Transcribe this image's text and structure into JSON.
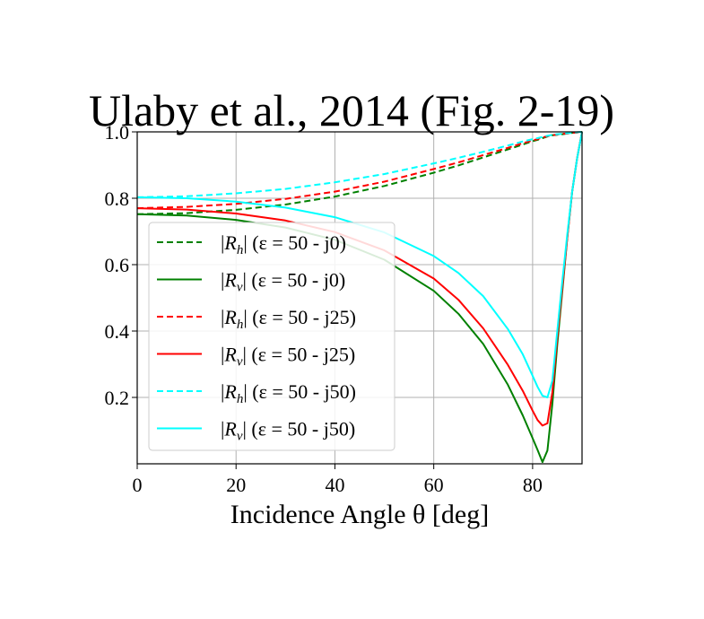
{
  "chart_data": {
    "type": "line",
    "title": "Ulaby et al., 2014 (Fig. 2-19)",
    "xlabel": "Incidence Angle θ [deg]",
    "ylabel": "",
    "xlim": [
      0,
      90
    ],
    "ylim": [
      0,
      1.0
    ],
    "xticks": [
      "0",
      "20",
      "40",
      "60",
      "80"
    ],
    "xtick_values": [
      0,
      20,
      40,
      60,
      80
    ],
    "yticks": [
      "0.2",
      "0.4",
      "0.6",
      "0.8",
      "1.0"
    ],
    "ytick_values": [
      0.2,
      0.4,
      0.6,
      0.8,
      1.0
    ],
    "grid": true,
    "legend_position": "lower-left",
    "x": [
      0,
      10,
      20,
      30,
      40,
      50,
      60,
      65,
      70,
      75,
      78,
      80,
      81,
      82,
      83,
      84,
      85,
      86,
      87,
      88,
      89,
      90
    ],
    "series": [
      {
        "name": "|R_h| (ε = 50 - j0)",
        "color": "#008000",
        "dash": true,
        "values": [
          0.752,
          0.755,
          0.765,
          0.781,
          0.805,
          0.837,
          0.877,
          0.899,
          0.923,
          0.947,
          0.962,
          0.972,
          0.976,
          0.981,
          0.986,
          0.99,
          0.991,
          0.993,
          0.995,
          0.997,
          0.998,
          1.0
        ]
      },
      {
        "name": "|R_v| (ε = 50 - j0)",
        "color": "#008000",
        "dash": false,
        "values": [
          0.752,
          0.748,
          0.735,
          0.712,
          0.675,
          0.615,
          0.521,
          0.452,
          0.361,
          0.238,
          0.146,
          0.077,
          0.042,
          0.005,
          0.04,
          0.18,
          0.36,
          0.52,
          0.68,
          0.82,
          0.92,
          1.0
        ]
      },
      {
        "name": "|R_h| (ε = 50 - j25)",
        "color": "#ff0000",
        "dash": true,
        "values": [
          0.77,
          0.774,
          0.783,
          0.798,
          0.82,
          0.85,
          0.888,
          0.908,
          0.93,
          0.952,
          0.966,
          0.974,
          0.978,
          0.983,
          0.987,
          0.99,
          0.992,
          0.994,
          0.995,
          0.997,
          0.998,
          1.0
        ]
      },
      {
        "name": "|R_v| (ε = 50 - j25)",
        "color": "#ff0000",
        "dash": false,
        "values": [
          0.77,
          0.766,
          0.754,
          0.733,
          0.698,
          0.643,
          0.558,
          0.494,
          0.408,
          0.298,
          0.22,
          0.16,
          0.132,
          0.115,
          0.122,
          0.215,
          0.38,
          0.53,
          0.68,
          0.82,
          0.92,
          1.0
        ]
      },
      {
        "name": "|R_h| (ε = 50 - j50)",
        "color": "#00ffff",
        "dash": true,
        "values": [
          0.803,
          0.806,
          0.815,
          0.828,
          0.848,
          0.873,
          0.905,
          0.922,
          0.94,
          0.959,
          0.971,
          0.978,
          0.981,
          0.985,
          0.988,
          0.991,
          0.993,
          0.994,
          0.996,
          0.997,
          0.999,
          1.0
        ]
      },
      {
        "name": "|R_v| (ε = 50 - j50)",
        "color": "#00ffff",
        "dash": false,
        "values": [
          0.803,
          0.8,
          0.79,
          0.772,
          0.743,
          0.697,
          0.626,
          0.575,
          0.505,
          0.406,
          0.33,
          0.265,
          0.232,
          0.205,
          0.2,
          0.25,
          0.4,
          0.55,
          0.69,
          0.82,
          0.92,
          1.0
        ]
      }
    ],
    "legend_labels": [
      {
        "abs_sym": "R",
        "sub": "h",
        "eq": "(ε = 50 - j0)"
      },
      {
        "abs_sym": "R",
        "sub": "v",
        "eq": "(ε = 50 - j0)"
      },
      {
        "abs_sym": "R",
        "sub": "h",
        "eq": "(ε = 50 - j25)"
      },
      {
        "abs_sym": "R",
        "sub": "v",
        "eq": "(ε = 50 - j25)"
      },
      {
        "abs_sym": "R",
        "sub": "h",
        "eq": "(ε = 50 - j50)"
      },
      {
        "abs_sym": "R",
        "sub": "v",
        "eq": "(ε = 50 - j50)"
      }
    ]
  }
}
